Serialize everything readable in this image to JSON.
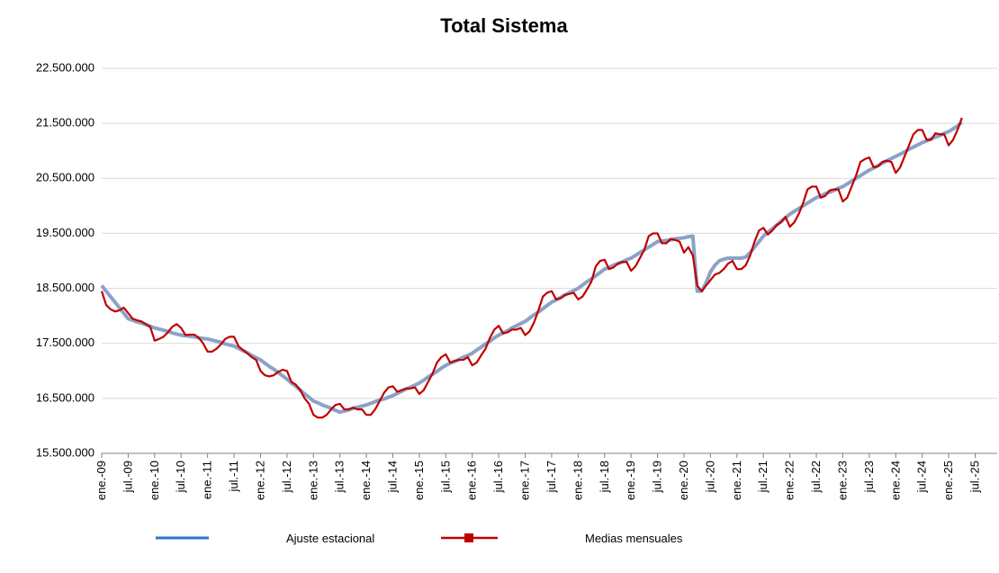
{
  "chart_data": {
    "type": "line",
    "title": "Total Sistema",
    "categories": [
      "ene.-09",
      null,
      null,
      null,
      null,
      null,
      "jul.-09",
      null,
      null,
      null,
      null,
      null,
      "ene.-10",
      null,
      null,
      null,
      null,
      null,
      "jul.-10",
      null,
      null,
      null,
      null,
      null,
      "ene.-11",
      null,
      null,
      null,
      null,
      null,
      "jul.-11",
      null,
      null,
      null,
      null,
      null,
      "ene.-12",
      null,
      null,
      null,
      null,
      null,
      "jul.-12",
      null,
      null,
      null,
      null,
      null,
      "ene.-13",
      null,
      null,
      null,
      null,
      null,
      "jul.-13",
      null,
      null,
      null,
      null,
      null,
      "ene.-14",
      null,
      null,
      null,
      null,
      null,
      "jul.-14",
      null,
      null,
      null,
      null,
      null,
      "ene.-15",
      null,
      null,
      null,
      null,
      null,
      "jul.-15",
      null,
      null,
      null,
      null,
      null,
      "ene.-16",
      null,
      null,
      null,
      null,
      null,
      "jul.-16",
      null,
      null,
      null,
      null,
      null,
      "ene.-17",
      null,
      null,
      null,
      null,
      null,
      "jul.-17",
      null,
      null,
      null,
      null,
      null,
      "ene.-18",
      null,
      null,
      null,
      null,
      null,
      "jul.-18",
      null,
      null,
      null,
      null,
      null,
      "ene.-19",
      null,
      null,
      null,
      null,
      null,
      "jul.-19",
      null,
      null,
      null,
      null,
      null,
      "ene.-20",
      null,
      null,
      null,
      null,
      null,
      "jul.-20",
      null,
      null,
      null,
      null,
      null,
      "ene.-21",
      null,
      null,
      null,
      null,
      null,
      "jul.-21",
      null,
      null,
      null,
      null,
      null,
      "ene.-22",
      null,
      null,
      null,
      null,
      null,
      "jul.-22",
      null,
      null,
      null,
      null,
      null,
      "ene.-23",
      null,
      null,
      null,
      null,
      null,
      "jul.-23",
      null,
      null,
      null,
      null,
      null,
      "ene.-24",
      null,
      null,
      null,
      null,
      null,
      "jul.-24",
      null,
      null,
      null,
      null,
      null,
      "ene.-25",
      null,
      null,
      null,
      null,
      null,
      "jul.-25"
    ],
    "series": [
      {
        "name": "Ajuste estacional",
        "color": "#8aa2c8",
        "legend_color": "#2e75c6",
        "values": [
          18550000,
          18450000,
          18350000,
          18250000,
          18150000,
          18050000,
          17950000,
          17920000,
          17890000,
          17870000,
          17840000,
          17810000,
          17780000,
          17760000,
          17740000,
          17720000,
          17690000,
          17670000,
          17650000,
          17640000,
          17630000,
          17620000,
          17600000,
          17590000,
          17580000,
          17560000,
          17540000,
          17520000,
          17490000,
          17470000,
          17450000,
          17410000,
          17370000,
          17330000,
          17280000,
          17240000,
          17200000,
          17140000,
          17080000,
          17030000,
          16970000,
          16910000,
          16850000,
          16780000,
          16720000,
          16650000,
          16580000,
          16520000,
          16450000,
          16420000,
          16380000,
          16350000,
          16320000,
          16280000,
          16250000,
          16270000,
          16290000,
          16320000,
          16340000,
          16360000,
          16380000,
          16410000,
          16440000,
          16470000,
          16490000,
          16520000,
          16550000,
          16590000,
          16630000,
          16670000,
          16700000,
          16740000,
          16780000,
          16830000,
          16890000,
          16940000,
          16990000,
          17050000,
          17100000,
          17140000,
          17170000,
          17210000,
          17250000,
          17280000,
          17320000,
          17380000,
          17430000,
          17490000,
          17540000,
          17600000,
          17650000,
          17690000,
          17730000,
          17780000,
          17820000,
          17860000,
          17900000,
          17960000,
          18020000,
          18070000,
          18130000,
          18190000,
          18250000,
          18290000,
          18330000,
          18380000,
          18420000,
          18460000,
          18500000,
          18560000,
          18620000,
          18670000,
          18730000,
          18790000,
          18850000,
          18880000,
          18920000,
          18950000,
          18980000,
          19020000,
          19050000,
          19100000,
          19150000,
          19200000,
          19250000,
          19300000,
          19350000,
          19360000,
          19370000,
          19380000,
          19400000,
          19410000,
          19420000,
          19440000,
          19450000,
          18450000,
          18450000,
          18600000,
          18800000,
          18920000,
          19000000,
          19030000,
          19050000,
          19050000,
          19050000,
          19050000,
          19070000,
          19150000,
          19250000,
          19350000,
          19450000,
          19520000,
          19580000,
          19650000,
          19720000,
          19780000,
          19850000,
          19900000,
          19950000,
          20000000,
          20050000,
          20100000,
          20150000,
          20180000,
          20220000,
          20250000,
          20280000,
          20320000,
          20350000,
          20400000,
          20450000,
          20500000,
          20550000,
          20600000,
          20650000,
          20690000,
          20730000,
          20780000,
          20820000,
          20860000,
          20900000,
          20940000,
          20980000,
          21030000,
          21070000,
          21110000,
          21150000,
          21180000,
          21220000,
          21250000,
          21280000,
          21320000,
          21350000,
          21400000,
          21450000,
          21520000,
          null,
          null,
          null
        ]
      },
      {
        "name": "Medias mensuales",
        "color": "#c00000",
        "values": [
          18450000,
          18200000,
          18120000,
          18080000,
          18100000,
          18150000,
          18050000,
          17950000,
          17920000,
          17900000,
          17850000,
          17800000,
          17550000,
          17580000,
          17620000,
          17700000,
          17800000,
          17850000,
          17780000,
          17650000,
          17660000,
          17660000,
          17600000,
          17500000,
          17350000,
          17350000,
          17400000,
          17480000,
          17580000,
          17620000,
          17620000,
          17450000,
          17380000,
          17320000,
          17250000,
          17200000,
          17000000,
          16920000,
          16900000,
          16920000,
          16980000,
          17020000,
          17000000,
          16800000,
          16750000,
          16650000,
          16500000,
          16400000,
          16200000,
          16150000,
          16150000,
          16200000,
          16300000,
          16380000,
          16400000,
          16300000,
          16300000,
          16330000,
          16300000,
          16300000,
          16200000,
          16200000,
          16300000,
          16450000,
          16600000,
          16700000,
          16720000,
          16620000,
          16650000,
          16680000,
          16680000,
          16700000,
          16580000,
          16650000,
          16800000,
          16950000,
          17150000,
          17250000,
          17300000,
          17150000,
          17180000,
          17200000,
          17200000,
          17250000,
          17100000,
          17150000,
          17280000,
          17400000,
          17600000,
          17750000,
          17820000,
          17680000,
          17700000,
          17750000,
          17750000,
          17780000,
          17650000,
          17720000,
          17880000,
          18100000,
          18350000,
          18420000,
          18450000,
          18300000,
          18320000,
          18380000,
          18400000,
          18420000,
          18300000,
          18350000,
          18480000,
          18620000,
          18900000,
          19000000,
          19020000,
          18850000,
          18880000,
          18950000,
          18980000,
          18980000,
          18820000,
          18900000,
          19050000,
          19200000,
          19450000,
          19500000,
          19500000,
          19320000,
          19320000,
          19400000,
          19380000,
          19350000,
          19150000,
          19250000,
          19100000,
          18550000,
          18450000,
          18550000,
          18650000,
          18750000,
          18780000,
          18850000,
          18950000,
          19000000,
          18850000,
          18850000,
          18920000,
          19100000,
          19350000,
          19550000,
          19600000,
          19480000,
          19550000,
          19650000,
          19700000,
          19800000,
          19620000,
          19700000,
          19850000,
          20050000,
          20300000,
          20350000,
          20350000,
          20150000,
          20180000,
          20280000,
          20300000,
          20300000,
          20080000,
          20150000,
          20350000,
          20550000,
          20800000,
          20850000,
          20880000,
          20700000,
          20720000,
          20800000,
          20820000,
          20800000,
          20600000,
          20700000,
          20900000,
          21100000,
          21300000,
          21380000,
          21380000,
          21200000,
          21200000,
          21320000,
          21300000,
          21300000,
          21100000,
          21200000,
          21380000,
          21600000,
          null,
          null,
          null
        ]
      }
    ],
    "ylim": [
      15500000,
      22500000
    ],
    "yticks": [
      {
        "value": 15500000,
        "label": "15.500.000"
      },
      {
        "value": 16500000,
        "label": "16.500.000"
      },
      {
        "value": 17500000,
        "label": "17.500.000"
      },
      {
        "value": 18500000,
        "label": "18.500.000"
      },
      {
        "value": 19500000,
        "label": "19.500.000"
      },
      {
        "value": 20500000,
        "label": "20.500.000"
      },
      {
        "value": 21500000,
        "label": "21.500.000"
      },
      {
        "value": 22500000,
        "label": "22.500.000"
      }
    ],
    "grid": true,
    "legend": "bottom"
  }
}
